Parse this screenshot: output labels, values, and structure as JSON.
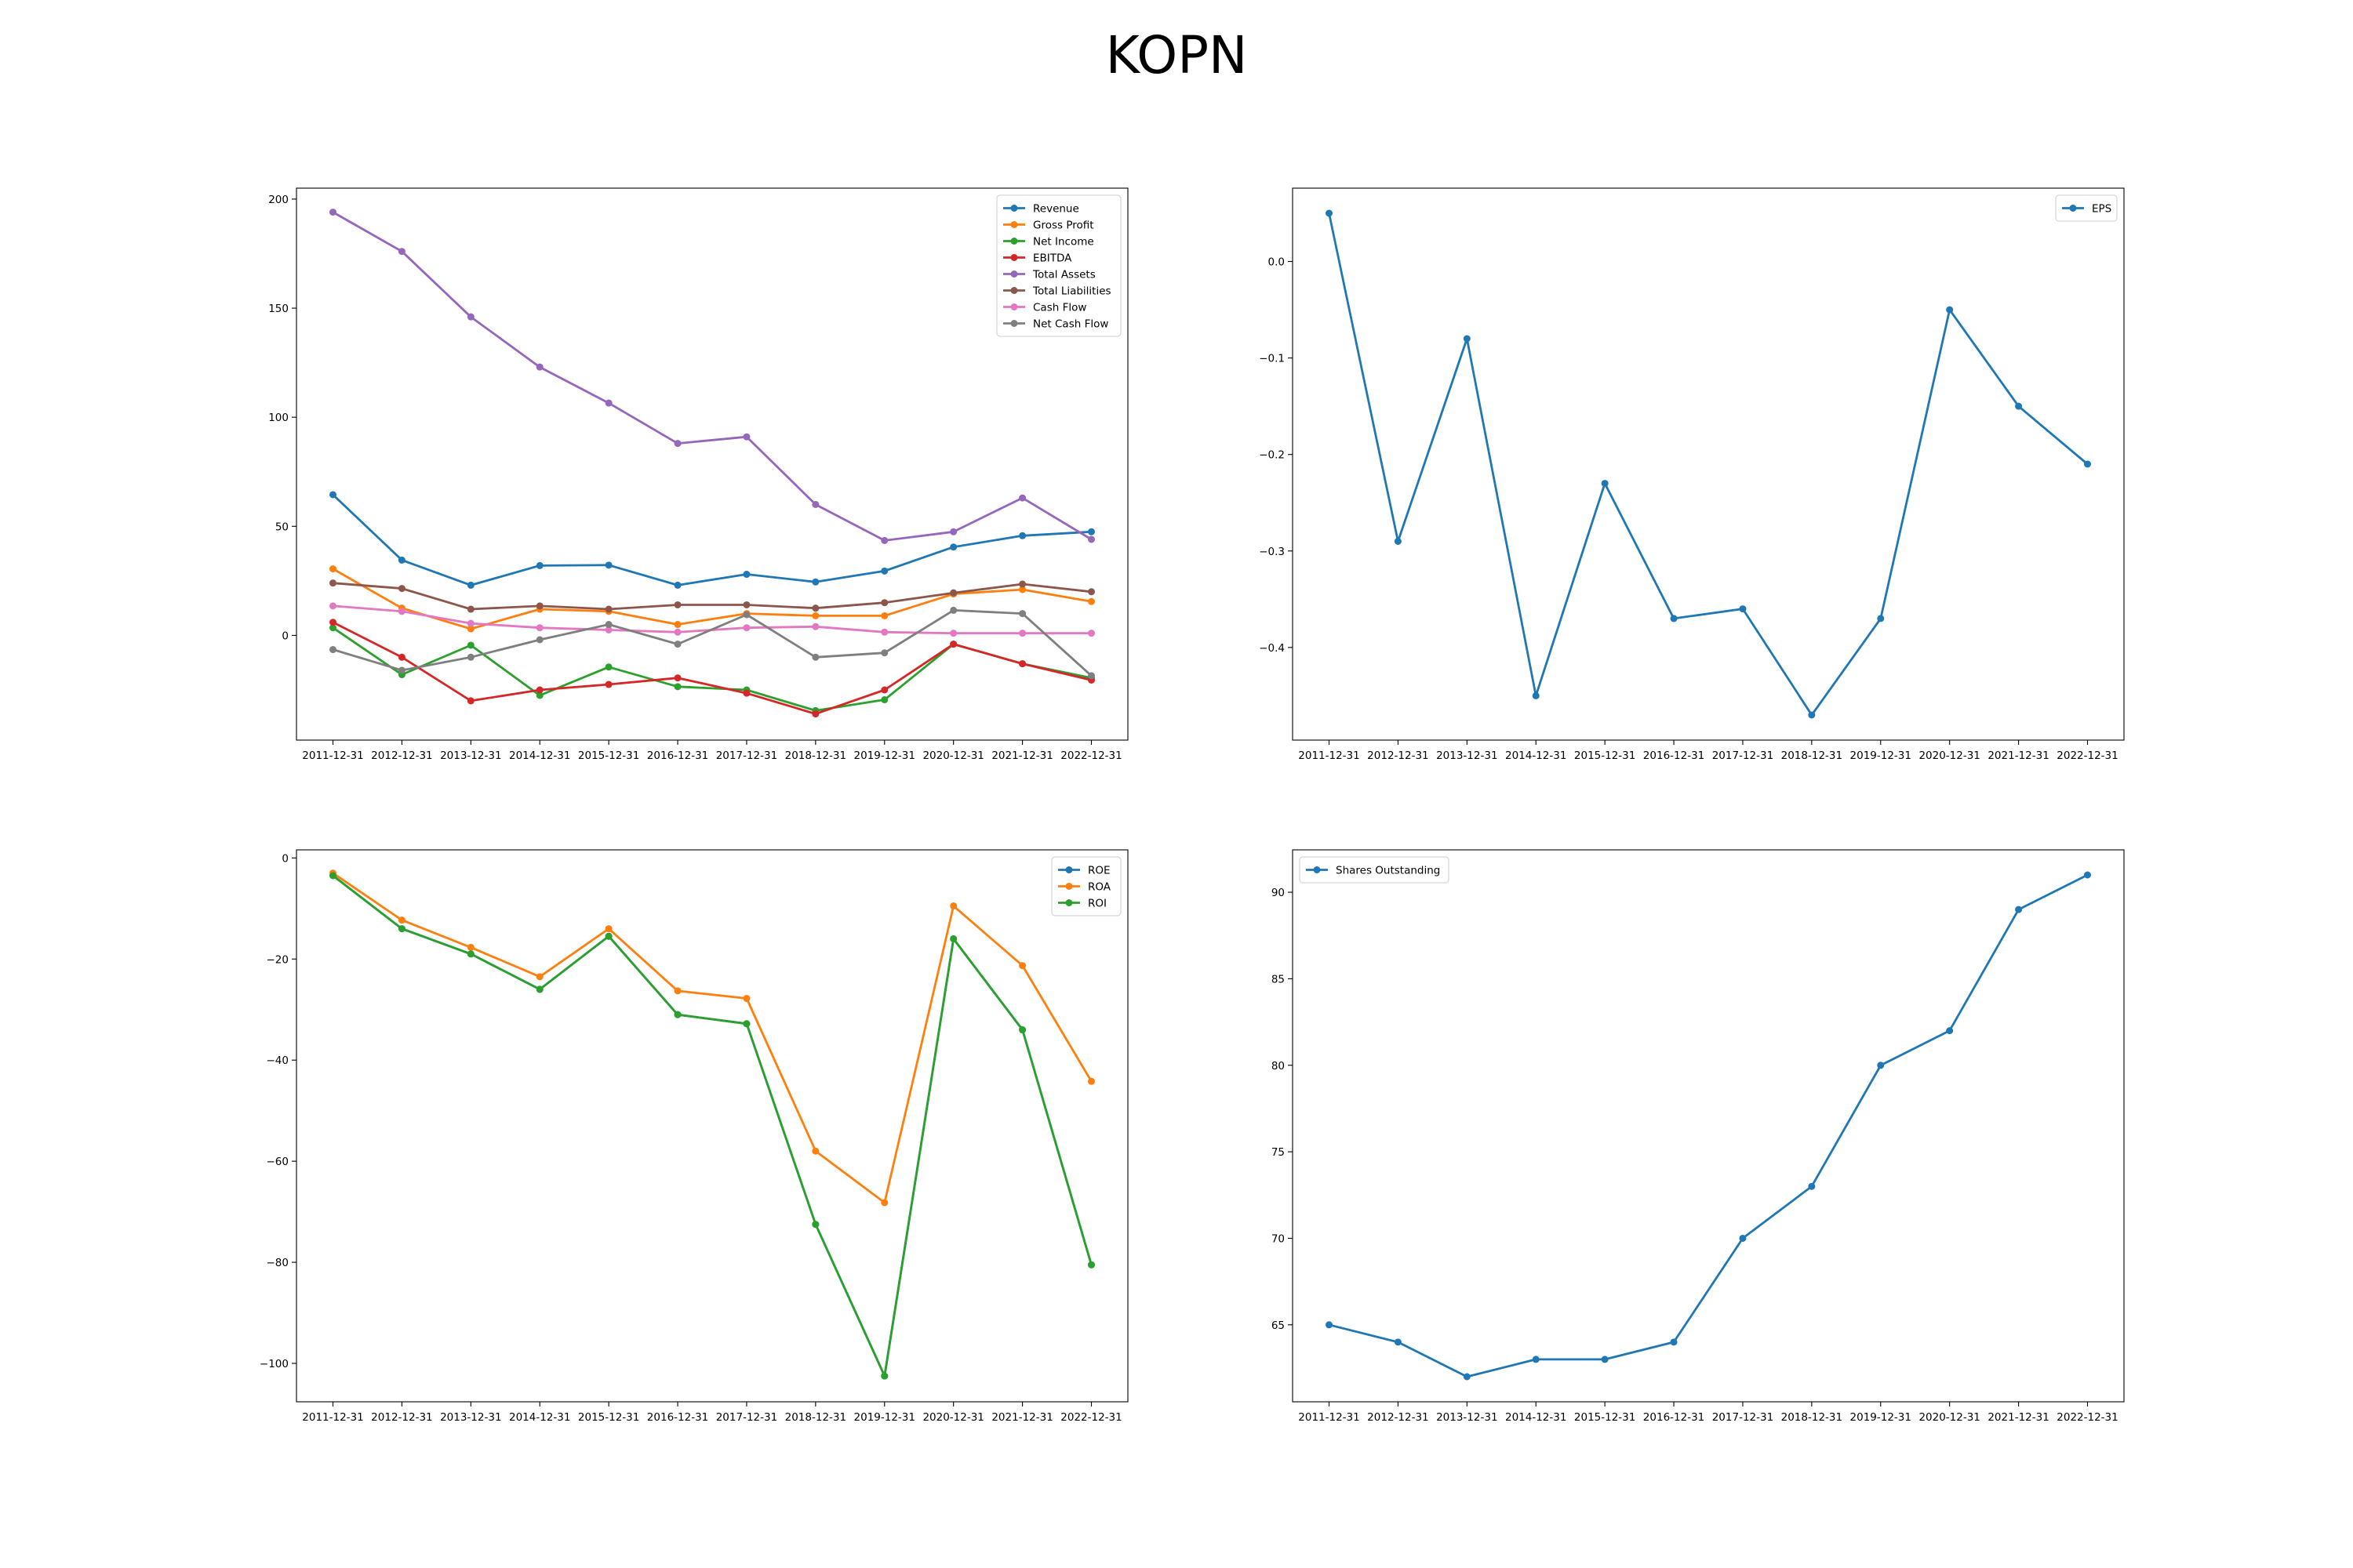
{
  "figure": {
    "title": "KOPN"
  },
  "chart_data": [
    {
      "type": "line",
      "title": "",
      "xlabel": "",
      "ylabel": "",
      "categories": [
        "2011-12-31",
        "2012-12-31",
        "2013-12-31",
        "2014-12-31",
        "2015-12-31",
        "2016-12-31",
        "2017-12-31",
        "2018-12-31",
        "2019-12-31",
        "2020-12-31",
        "2021-12-31",
        "2022-12-31"
      ],
      "ylim": [
        -48,
        205
      ],
      "yticks": [
        0,
        50,
        100,
        150,
        200
      ],
      "grid": false,
      "legend_position": "upper right",
      "series": [
        {
          "name": "Revenue",
          "color": "#1f77b4",
          "values": [
            64.5,
            34.5,
            23,
            32,
            32.2,
            23,
            28,
            24.5,
            29.5,
            40.5,
            45.7,
            47.5
          ]
        },
        {
          "name": "Gross Profit",
          "color": "#ff7f0e",
          "values": [
            30.5,
            12.5,
            3,
            12,
            11,
            5,
            10,
            9,
            9,
            19,
            21,
            15.5
          ]
        },
        {
          "name": "Net Income",
          "color": "#2ca02c",
          "values": [
            3.5,
            -18,
            -4.5,
            -27.5,
            -14.5,
            -23.5,
            -25,
            -34.5,
            -29.5,
            -4,
            -13,
            -19.5
          ]
        },
        {
          "name": "EBITDA",
          "color": "#d62728",
          "values": [
            6,
            -10,
            -30,
            -25,
            -22.5,
            -19.5,
            -26.5,
            -36,
            -25,
            -4,
            -13,
            -20.5
          ]
        },
        {
          "name": "Total Assets",
          "color": "#9467bd",
          "values": [
            194,
            176,
            146,
            123,
            106.5,
            88,
            91,
            60,
            43.5,
            47.5,
            63,
            44
          ]
        },
        {
          "name": "Total Liabilities",
          "color": "#8c564b",
          "values": [
            24,
            21.5,
            12,
            13.5,
            12,
            14,
            14,
            12.5,
            15,
            19.5,
            23.5,
            20
          ]
        },
        {
          "name": "Cash Flow",
          "color": "#e377c2",
          "values": [
            13.5,
            11,
            5.5,
            3.5,
            2.5,
            1.5,
            3.5,
            4,
            1.5,
            1,
            1,
            1
          ]
        },
        {
          "name": "Net Cash Flow",
          "color": "#7f7f7f",
          "values": [
            -6.5,
            -16,
            -10,
            -2,
            5,
            -4,
            9.5,
            -10,
            -8,
            11.5,
            10,
            -18.5
          ]
        }
      ]
    },
    {
      "type": "line",
      "title": "",
      "xlabel": "",
      "ylabel": "",
      "categories": [
        "2011-12-31",
        "2012-12-31",
        "2013-12-31",
        "2014-12-31",
        "2015-12-31",
        "2016-12-31",
        "2017-12-31",
        "2018-12-31",
        "2019-12-31",
        "2020-12-31",
        "2021-12-31",
        "2022-12-31"
      ],
      "ylim": [
        -0.496,
        0.076
      ],
      "yticks": [
        0.0,
        -0.1,
        -0.2,
        -0.3,
        -0.4
      ],
      "ytick_labels": [
        "0.0",
        "−0.1",
        "−0.2",
        "−0.3",
        "−0.4"
      ],
      "grid": false,
      "legend_position": "upper right",
      "series": [
        {
          "name": "EPS",
          "color": "#1f77b4",
          "values": [
            0.05,
            -0.29,
            -0.08,
            -0.45,
            -0.23,
            -0.37,
            -0.36,
            -0.47,
            -0.37,
            -0.05,
            -0.15,
            -0.21
          ]
        }
      ]
    },
    {
      "type": "line",
      "title": "",
      "xlabel": "",
      "ylabel": "",
      "categories": [
        "2011-12-31",
        "2012-12-31",
        "2013-12-31",
        "2014-12-31",
        "2015-12-31",
        "2016-12-31",
        "2017-12-31",
        "2018-12-31",
        "2019-12-31",
        "2020-12-31",
        "2021-12-31",
        "2022-12-31"
      ],
      "ylim": [
        -107.6,
        1.6
      ],
      "yticks": [
        0,
        -20,
        -40,
        -60,
        -80,
        -100
      ],
      "ytick_labels": [
        "0",
        "−20",
        "−40",
        "−60",
        "−80",
        "−100"
      ],
      "grid": false,
      "legend_position": "upper right",
      "series": [
        {
          "name": "ROE",
          "color": "#1f77b4",
          "values": [
            -3.5,
            -14,
            -19,
            -26,
            -15.5,
            -31,
            -32.8,
            -72.5,
            -102.5,
            -16,
            -34,
            -80.5
          ]
        },
        {
          "name": "ROA",
          "color": "#ff7f0e",
          "values": [
            -3,
            -12.3,
            -17.7,
            -23.5,
            -14,
            -26.3,
            -27.8,
            -58,
            -68.2,
            -9.5,
            -21.3,
            -44.2
          ]
        },
        {
          "name": "ROI",
          "color": "#2ca02c",
          "values": [
            -3.5,
            -14,
            -19,
            -26,
            -15.5,
            -31,
            -32.8,
            -72.5,
            -102.5,
            -16,
            -34,
            -80.5
          ]
        }
      ]
    },
    {
      "type": "line",
      "title": "",
      "xlabel": "",
      "ylabel": "",
      "categories": [
        "2011-12-31",
        "2012-12-31",
        "2013-12-31",
        "2014-12-31",
        "2015-12-31",
        "2016-12-31",
        "2017-12-31",
        "2018-12-31",
        "2019-12-31",
        "2020-12-31",
        "2021-12-31",
        "2022-12-31"
      ],
      "ylim": [
        60.55,
        92.45
      ],
      "yticks": [
        65,
        70,
        75,
        80,
        85,
        90
      ],
      "grid": false,
      "legend_position": "upper left",
      "series": [
        {
          "name": "Shares Outstanding",
          "color": "#1f77b4",
          "values": [
            65,
            64,
            62,
            63,
            63,
            64,
            70,
            73,
            80,
            82,
            89,
            91
          ]
        }
      ]
    }
  ]
}
